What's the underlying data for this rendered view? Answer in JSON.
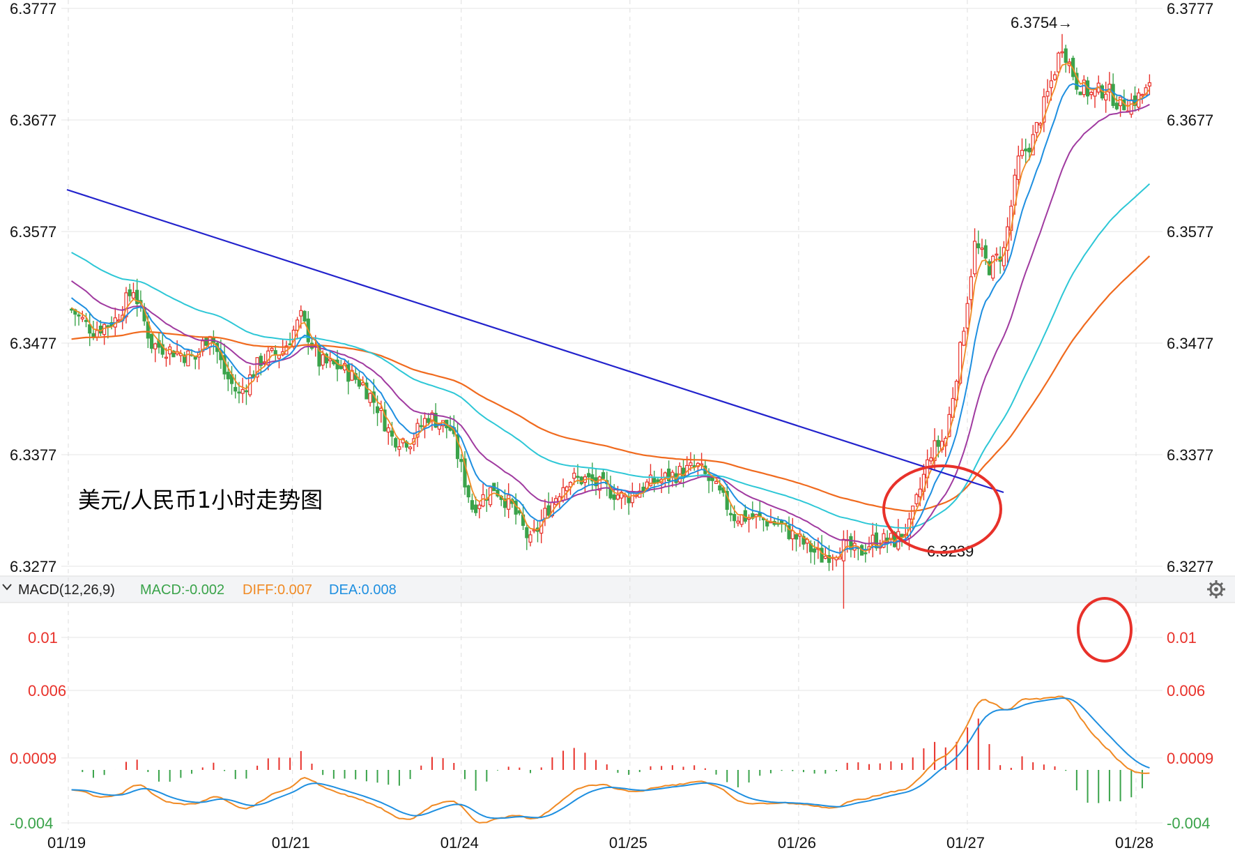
{
  "colors": {
    "up": "#e8312a",
    "down": "#3aa34a",
    "ma_fast": "#f08a24",
    "ma_mid": "#1e8fe0",
    "ma_slow": "#a03aa0",
    "ma_long": "#2dc7d6",
    "ma_longest": "#f06a1e",
    "trendline": "#2222cc",
    "annotation_red": "#e8312a",
    "macd_pos": "#e8312a",
    "macd_neg": "#3aa34a",
    "diff": "#f08a24",
    "dea": "#1e8fe0",
    "grid": "#e6e6e6"
  },
  "annotation": {
    "title": "美元/人民币1小时走势图",
    "high_label": "6.3754→",
    "low_label": "6.3239"
  },
  "macd_bar": {
    "name": "MACD(12,26,9)",
    "macd_label": "MACD:-0.002",
    "diff_label": "DIFF:0.007",
    "dea_label": "DEA:0.008",
    "gear_icon": "gear-icon",
    "chevron_icon": "chevron-down-icon"
  },
  "chart_data": {
    "type": "candlestick",
    "title": "",
    "x_ticks": [
      "01/19",
      "01/21",
      "01/24",
      "01/25",
      "01/26",
      "01/27",
      "01/28"
    ],
    "y_ticks": [
      "6.3777",
      "6.3677",
      "6.3577",
      "6.3477",
      "6.3377",
      "6.3277"
    ],
    "ylim": [
      6.3277,
      6.3777
    ],
    "macd_ticks": [
      "0.01",
      "0.006",
      "0.0009",
      "-0.004"
    ],
    "macd_ylim": [
      -0.004,
      0.012
    ],
    "series": [
      {
        "name": "",
        "type": "candlestick"
      },
      {
        "name": "MACD",
        "type": "bar"
      },
      {
        "name": "DIFF",
        "type": "line"
      },
      {
        "name": "DEA",
        "type": "line"
      }
    ]
  }
}
